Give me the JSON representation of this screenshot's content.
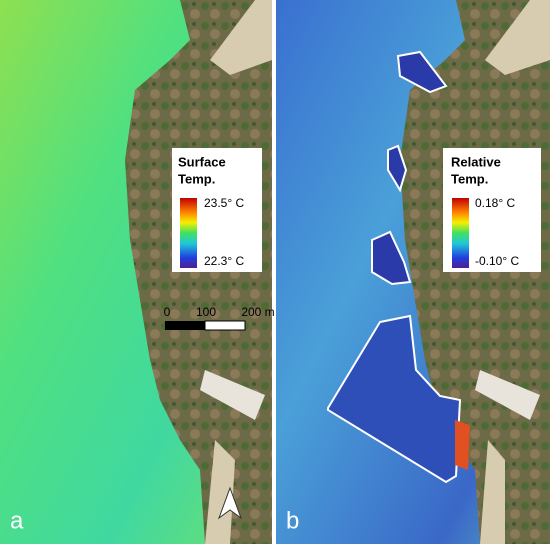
{
  "panels": [
    {
      "label": "a",
      "legend": {
        "title": [
          "Surface",
          "Temp."
        ],
        "max": "23.5° C",
        "min": "22.3° C"
      },
      "scale_bar": [
        "0",
        "100",
        "200 m"
      ]
    },
    {
      "label": "b",
      "legend": {
        "title": [
          "Relative",
          "Temp."
        ],
        "max": "0.18° C",
        "min": "-0.10° C"
      }
    }
  ]
}
